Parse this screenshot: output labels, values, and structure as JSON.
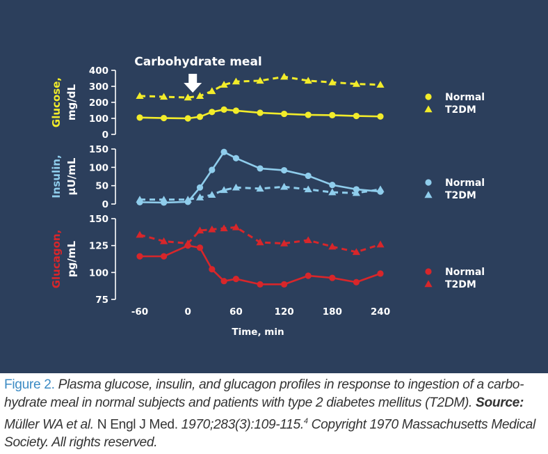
{
  "colors": {
    "background": "#2c3f5c",
    "glucose": "#f2ec2a",
    "insulin": "#8fcdec",
    "glucagon": "#d8262a",
    "text": "#ffffff",
    "caption_label": "#3c8bc4",
    "caption_text": "#333333"
  },
  "annotation": {
    "meal_label": "Carbohydrate meal",
    "meal_time": 0,
    "icon": "down-arrow-icon"
  },
  "chart_data": [
    {
      "type": "line",
      "panel": "glucose",
      "ylabel": [
        "Glucose,",
        "mg/dL"
      ],
      "ylim": [
        0,
        400
      ],
      "yticks": [
        "0",
        "100",
        "200",
        "300",
        "400"
      ],
      "yticks_values": [
        0,
        100,
        200,
        300,
        400
      ],
      "legend": [
        "Normal",
        "T2DM"
      ],
      "series": [
        {
          "name": "Normal",
          "marker": "circle",
          "line": "solid",
          "x": [
            -60,
            -30,
            0,
            15,
            30,
            45,
            60,
            90,
            120,
            150,
            180,
            210,
            240
          ],
          "values": [
            105,
            102,
            100,
            110,
            140,
            155,
            148,
            135,
            128,
            122,
            120,
            115,
            112
          ]
        },
        {
          "name": "T2DM",
          "marker": "triangle",
          "line": "dashed",
          "x": [
            -60,
            -30,
            0,
            15,
            30,
            45,
            60,
            90,
            120,
            150,
            180,
            210,
            240
          ],
          "values": [
            240,
            235,
            230,
            240,
            270,
            310,
            330,
            335,
            360,
            335,
            325,
            315,
            310
          ]
        }
      ]
    },
    {
      "type": "line",
      "panel": "insulin",
      "ylabel": [
        "Insulin,",
        "µU/mL"
      ],
      "ylim": [
        0,
        150
      ],
      "yticks": [
        "0",
        "50",
        "100",
        "150"
      ],
      "yticks_values": [
        0,
        50,
        100,
        150
      ],
      "legend": [
        "Normal",
        "T2DM"
      ],
      "series": [
        {
          "name": "Normal",
          "marker": "circle",
          "line": "solid",
          "x": [
            -60,
            -30,
            0,
            15,
            30,
            45,
            60,
            90,
            120,
            150,
            180,
            210,
            240
          ],
          "values": [
            5,
            4,
            6,
            45,
            93,
            142,
            125,
            97,
            92,
            77,
            52,
            40,
            34
          ]
        },
        {
          "name": "T2DM",
          "marker": "triangle",
          "line": "dashed",
          "x": [
            -60,
            -30,
            0,
            15,
            30,
            45,
            60,
            90,
            120,
            150,
            180,
            210,
            240
          ],
          "values": [
            12,
            12,
            12,
            18,
            25,
            38,
            45,
            42,
            47,
            40,
            32,
            30,
            40
          ]
        }
      ]
    },
    {
      "type": "line",
      "panel": "glucagon",
      "ylabel": [
        "Glucagon,",
        "pg/mL"
      ],
      "ylim": [
        75,
        150
      ],
      "yticks": [
        "75",
        "100",
        "125",
        "150"
      ],
      "yticks_values": [
        75,
        100,
        125,
        150
      ],
      "legend": [
        "Normal",
        "T2DM"
      ],
      "series": [
        {
          "name": "Normal",
          "marker": "circle",
          "line": "solid",
          "x": [
            -60,
            -30,
            0,
            15,
            30,
            45,
            60,
            90,
            120,
            150,
            180,
            210,
            240
          ],
          "values": [
            115,
            115,
            125,
            123,
            103,
            92,
            94,
            89,
            89,
            97,
            95,
            91,
            99
          ]
        },
        {
          "name": "T2DM",
          "marker": "triangle",
          "line": "dashed",
          "x": [
            -60,
            -30,
            0,
            15,
            30,
            45,
            60,
            90,
            120,
            150,
            180,
            210,
            240
          ],
          "values": [
            135,
            129,
            127,
            139,
            140,
            141,
            142,
            128,
            127,
            130,
            124,
            119,
            126
          ]
        }
      ]
    }
  ],
  "x_axis": {
    "xlabel": "Time, min",
    "xlim": [
      -60,
      240
    ],
    "ticks": [
      "-60",
      "0",
      "60",
      "120",
      "180",
      "240"
    ],
    "tick_values": [
      -60,
      0,
      60,
      120,
      180,
      240
    ]
  },
  "caption": {
    "label": "Figure 2.",
    "text": "Plasma glucose, insulin, and glucagon profiles in response to ingestion of a carbo-hydrate meal in normal subjects and patients with type 2 diabetes mellitus (T2DM).",
    "source_label": "Source:",
    "source_authors": "Müller WA et al.",
    "source_journal": "N Engl J Med.",
    "source_citation": "1970;283(3):109-115.",
    "source_ref": "4",
    "copyright": "Copyright 1970 Massachusetts Medical Society. All rights reserved."
  }
}
